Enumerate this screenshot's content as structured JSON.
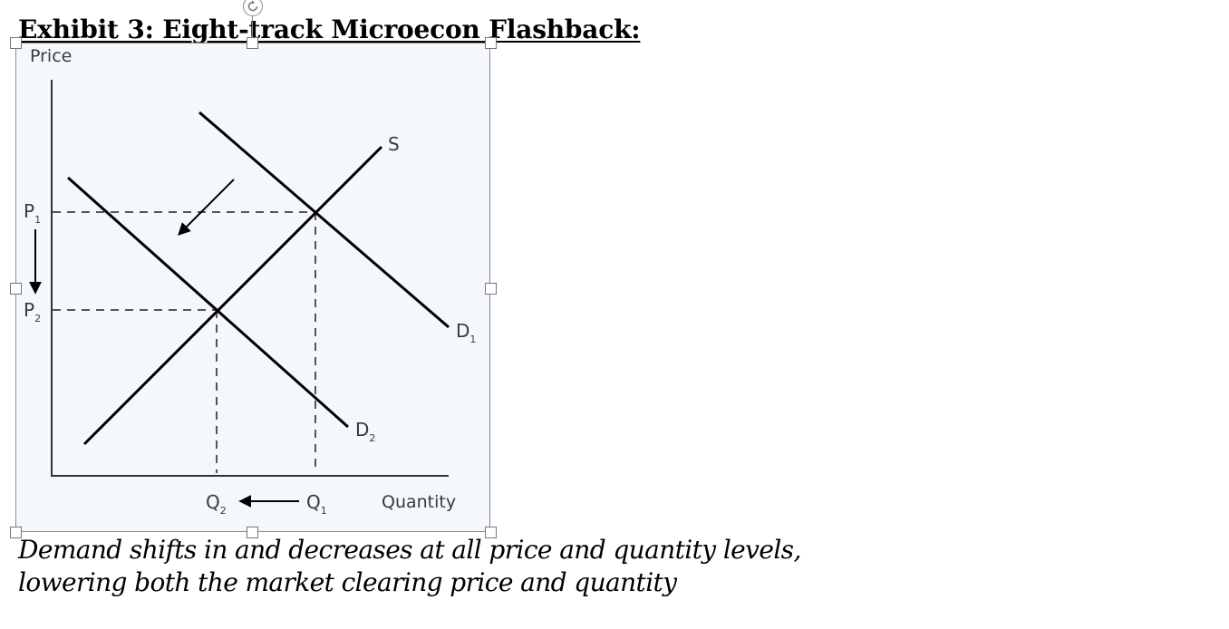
{
  "exhibit": {
    "title": "Exhibit 3: Eight-track Microecon Flashback:"
  },
  "diagram": {
    "y_axis_label": "Price",
    "x_axis_label": "Quantity",
    "price_1": {
      "letter": "P",
      "sub": "1"
    },
    "price_2": {
      "letter": "P",
      "sub": "2"
    },
    "quantity_1": {
      "letter": "Q",
      "sub": "1"
    },
    "quantity_2": {
      "letter": "Q",
      "sub": "2"
    },
    "supply_label": "S",
    "demand_1": {
      "letter": "D",
      "sub": "1"
    },
    "demand_2": {
      "letter": "D",
      "sub": "2"
    }
  },
  "caption": {
    "line_1": "Demand shifts in and decreases at all price and quantity levels,",
    "line_2": "lowering both the market clearing price and quantity"
  },
  "colors": {
    "figure_background": "#f4f7fb",
    "curve": "#000000",
    "dashed_guide": "#555555",
    "label_text": "#3a3a3a",
    "selection_handle_border": "#777777"
  }
}
